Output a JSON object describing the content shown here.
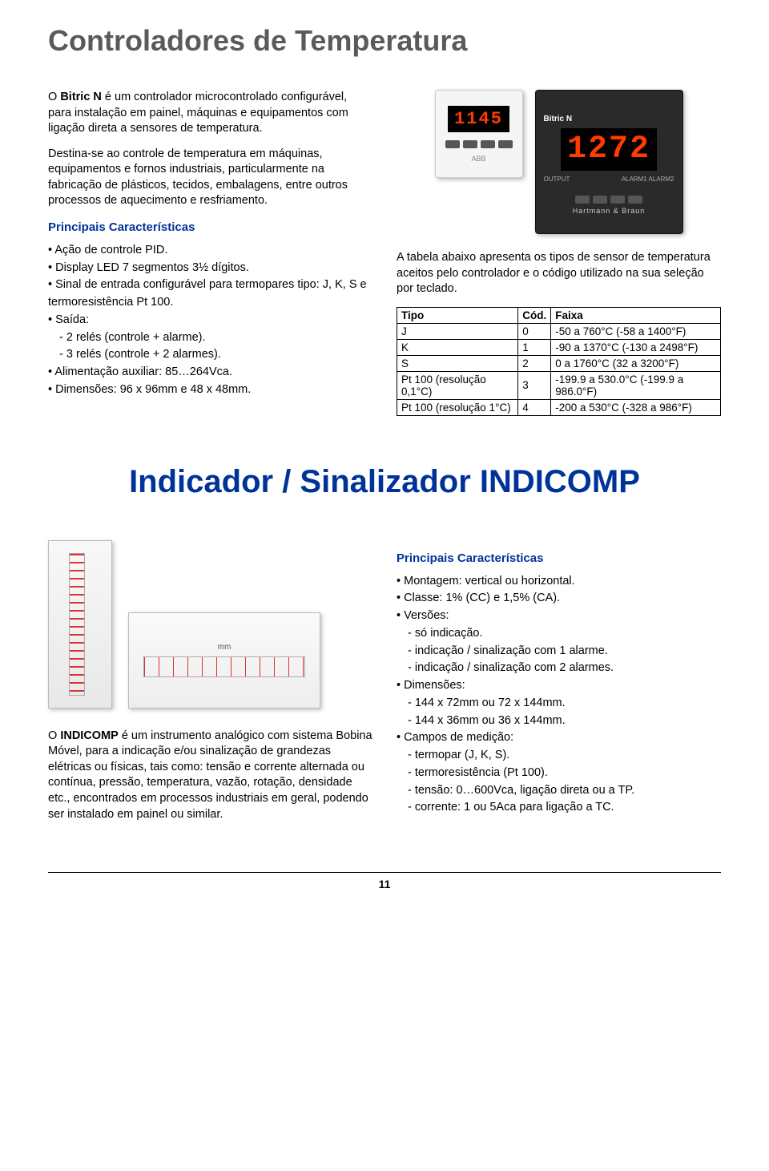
{
  "section1": {
    "title": "Controladores de Temperatura",
    "intro_prefix": "O ",
    "intro_bold": "Bitric N",
    "intro_rest": " é um controlador microcontrolado configurável, para instalação em painel, máquinas e equipamentos com ligação direta a sensores de temperatura.",
    "intro2": "Destina-se ao controle de temperatura em máquinas, equipamentos e fornos industriais, particularmente na fabricação de plásticos, tecidos, embalagens, entre outros processos de aquecimento e resfriamento.",
    "pc_heading": "Principais Características",
    "bullets": [
      "Ação de controle PID.",
      "Display LED 7 segmentos 3½ dígitos.",
      "Sinal de entrada configurável para termopares tipo: J, K, S e termoresistência Pt 100.",
      "Saída:",
      "Alimentação auxiliar: 85…264Vca.",
      "Dimensões: 96 x 96mm e 48 x 48mm."
    ],
    "saida_sub": [
      "- 2 relés (controle + alarme).",
      "- 3 relés (controle + 2  alarmes)."
    ],
    "dev_small_led": "1145",
    "dev_large_label": "Bitric N",
    "dev_large_led": "1272",
    "dev_large_output": "OUTPUT",
    "dev_large_alarm": "ALARM1  ALARM2",
    "dev_brand": "Hartmann & Braun",
    "table_intro": "A tabela abaixo apresenta os tipos de sensor de temperatura aceitos pelo controlador e o código utilizado na sua seleção por teclado.",
    "table": {
      "headers": [
        "Tipo",
        "Cód.",
        "Faixa"
      ],
      "rows": [
        [
          "J",
          "0",
          "-50 a 760°C   (-58 a 1400°F)"
        ],
        [
          "K",
          "1",
          "-90 a 1370°C  (-130 a 2498°F)"
        ],
        [
          "S",
          "2",
          "0 a 1760°C  (32 a 3200°F)"
        ],
        [
          "Pt 100 (resolução 0,1°C)",
          "3",
          "-199.9 a 530.0°C  (-199.9 a 986.0°F)"
        ],
        [
          "Pt 100 (resolução 1°C)",
          "4",
          "-200 a 530°C   (-328 a 986°F)"
        ]
      ]
    }
  },
  "section2": {
    "title": "Indicador / Sinalizador  INDICOMP",
    "meter_label": "mm",
    "intro_prefix": "O ",
    "intro_bold": "INDICOMP",
    "intro_rest": " é um instrumento analógico com sistema Bobina Móvel, para a indicação e/ou sinalização de grandezas elétricas ou físicas, tais como: tensão e corrente alternada ou contínua, pressão, temperatura, vazão, rotação, densidade etc., encontrados em processos industriais em geral, podendo ser instalado em painel ou similar.",
    "pc_heading": "Principais Características",
    "bullets": [
      {
        "text": "Montagem: vertical ou horizontal."
      },
      {
        "text": "Classe: 1% (CC) e 1,5% (CA)."
      },
      {
        "text": "Versões:",
        "sub": [
          "- só indicação.",
          "- indicação / sinalização com 1 alarme.",
          "- indicação / sinalização com 2 alarmes."
        ]
      },
      {
        "text": "Dimensões:",
        "sub": [
          "- 144 x 72mm ou 72 x 144mm.",
          "- 144 x 36mm ou 36 x 144mm."
        ]
      },
      {
        "text": "Campos de medição:",
        "sub": [
          "- termopar (J, K, S).",
          "- termoresistência (Pt 100).",
          "- tensão: 0…600Vca, ligação direta ou a TP.",
          "- corrente: 1 ou 5Aca para ligação a TC."
        ]
      }
    ]
  },
  "page_number": "11"
}
